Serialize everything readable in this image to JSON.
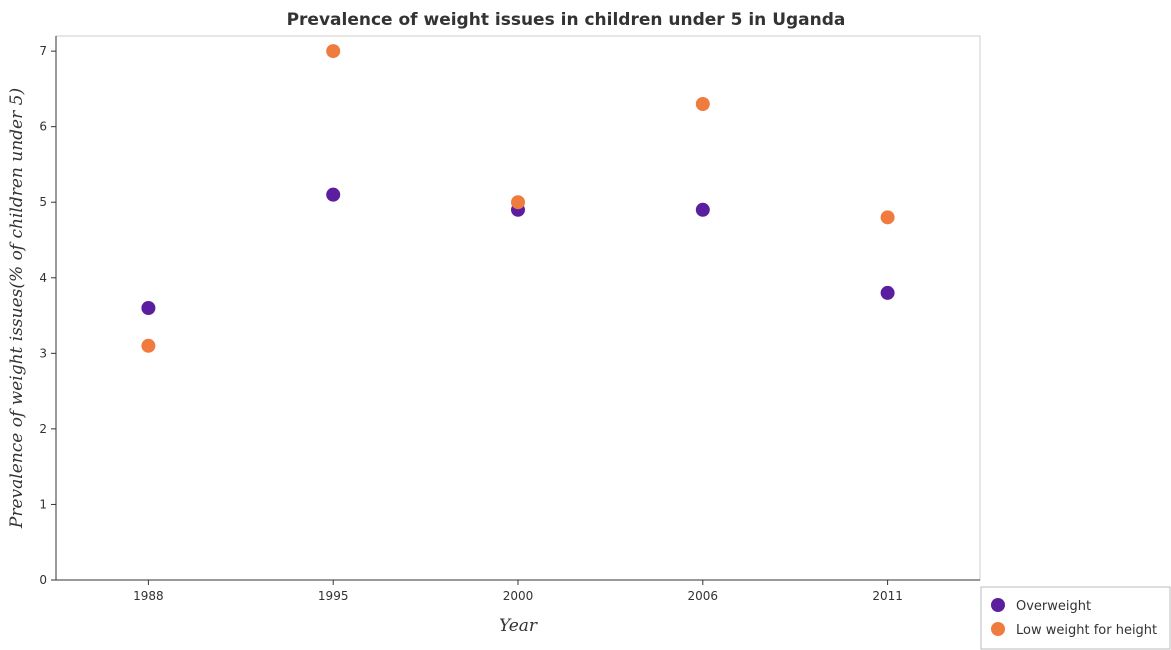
{
  "chart_data": {
    "type": "scatter",
    "title": "Prevalence of weight issues in children under 5 in Uganda",
    "xlabel": "Year",
    "ylabel": "Prevalence of weight issues(% of children under 5)",
    "categories": [
      "1988",
      "1995",
      "2000",
      "2006",
      "2011"
    ],
    "ylim": [
      0,
      7.2
    ],
    "yticks": [
      "0",
      "1",
      "2",
      "3",
      "4",
      "5",
      "6",
      "7"
    ],
    "grid": false,
    "legend_position": "bottom-right",
    "series": [
      {
        "name": "Overweight",
        "color": "#5b1e9e",
        "values": [
          3.6,
          5.1,
          4.9,
          4.9,
          3.8
        ]
      },
      {
        "name": "Low weight for height",
        "color": "#f07b3e",
        "values": [
          3.1,
          7.0,
          5.0,
          6.3,
          4.8
        ]
      }
    ]
  }
}
